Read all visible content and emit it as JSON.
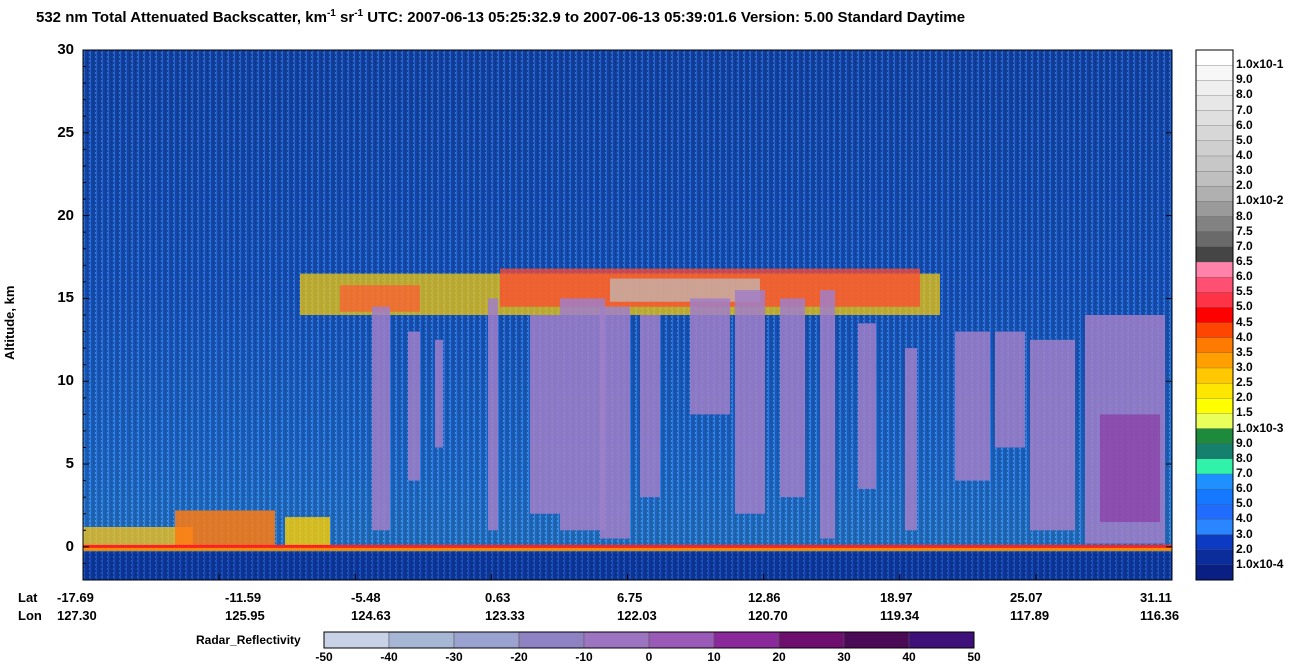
{
  "title": {
    "main": "532 nm Total Attenuated Backscatter, km",
    "exp1": "-1",
    "mid": " sr",
    "exp2": "-1",
    "utc": "    UTC:  2007-06-13 05:25:32.9  to  2007-06-13 05:39:01.6    Version: 5.00  Standard  Daytime"
  },
  "colors": {
    "background_sky": "#1a4fa8",
    "deep_blue": "#0a2f8f",
    "cloud_purple": "#a07fc8",
    "orange": "#ff8a00",
    "red": "#ff2020",
    "yellow": "#ffff20"
  },
  "chart_data": {
    "type": "heatmap",
    "title": "532 nm Total Attenuated Backscatter, km-1 sr-1",
    "ylabel": "Altitude, km",
    "ylim": [
      -2,
      30
    ],
    "yticks": [
      0,
      5,
      10,
      15,
      20,
      25,
      30
    ],
    "x_axis_heads": [
      "Lat",
      "Lon"
    ],
    "lat_ticks": [
      "-17.69",
      "-11.59",
      "-5.48",
      "0.63",
      "6.75",
      "12.86",
      "18.97",
      "25.07",
      "31.11"
    ],
    "lon_ticks": [
      "127.30",
      "125.95",
      "124.63",
      "123.33",
      "122.03",
      "120.70",
      "119.34",
      "117.89",
      "116.36"
    ],
    "colorbar": {
      "labels": [
        "1.0x10-1",
        "9.0",
        "8.0",
        "7.0",
        "6.0",
        "5.0",
        "4.0",
        "3.0",
        "2.0",
        "1.0x10-2",
        "8.0",
        "7.5",
        "7.0",
        "6.5",
        "6.0",
        "5.5",
        "5.0",
        "4.5",
        "4.0",
        "3.5",
        "3.0",
        "2.5",
        "2.0",
        "1.5",
        "1.0x10-3",
        "9.0",
        "8.0",
        "7.0",
        "6.0",
        "5.0",
        "4.0",
        "3.0",
        "2.0",
        "1.0x10-4"
      ],
      "colors": [
        "#ffffff",
        "#f7f7f7",
        "#efefef",
        "#e7e7e7",
        "#dfdfdf",
        "#d7d7d7",
        "#cfcfcf",
        "#c7c7c7",
        "#bfbfbf",
        "#b0b0b0",
        "#9a9a9a",
        "#828282",
        "#6a6a6a",
        "#454545",
        "#ff82aa",
        "#ff4f73",
        "#ff3346",
        "#ff0000",
        "#ff4500",
        "#ff7a00",
        "#ffa000",
        "#ffc800",
        "#ffe600",
        "#ffff00",
        "#eaff5a",
        "#1e8a3c",
        "#15806e",
        "#30f2a8",
        "#1e90ff",
        "#1479ff",
        "#1f6cff",
        "#2a86ff",
        "#0d3ac2",
        "#0a2d9a",
        "#0a1f84"
      ]
    },
    "radar": {
      "label": "Radar_Reflectivity",
      "ticks": [
        "-50",
        "-40",
        "-30",
        "-20",
        "-10",
        "0",
        "10",
        "20",
        "30",
        "40",
        "50"
      ],
      "colors": [
        "#c8d2e6",
        "#a8b6d6",
        "#9aa3cf",
        "#8e82c2",
        "#9c74c2",
        "#9a5ab8",
        "#8a2a9a",
        "#6e0e6e",
        "#4a0a56",
        "#40107a"
      ]
    },
    "features": {
      "cloud_top_band_km": [
        14,
        17
      ],
      "surface_km": 0,
      "boundary_layer_km": [
        0,
        2
      ]
    }
  }
}
